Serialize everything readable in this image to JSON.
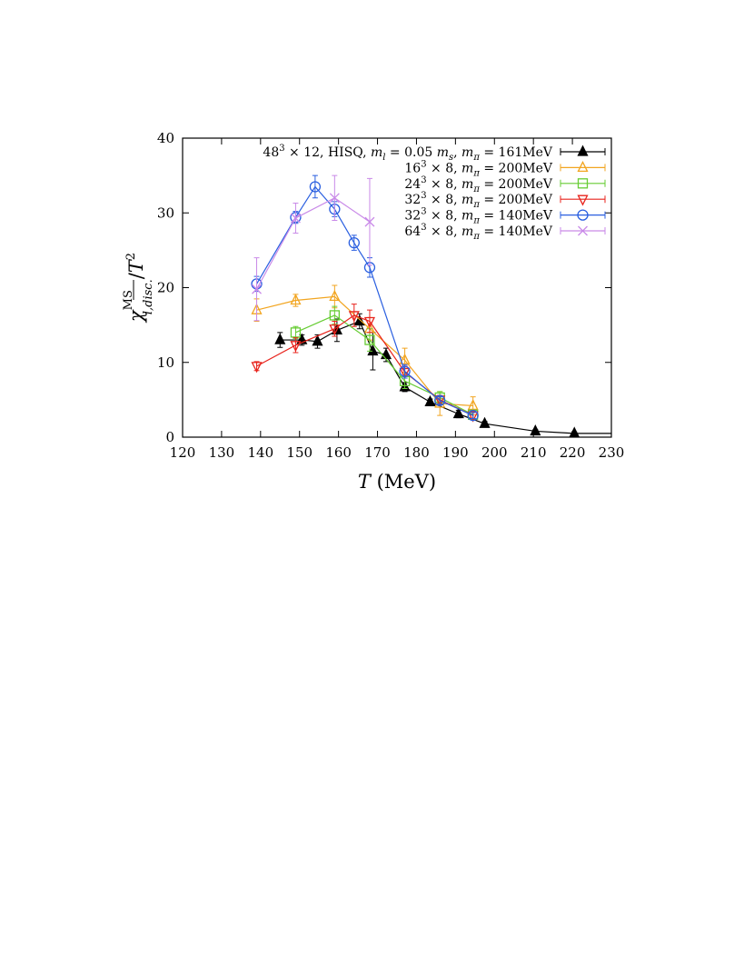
{
  "chart_data": {
    "type": "line",
    "title": "",
    "xlabel": {
      "italic": "T",
      "rest": " (MeV)"
    },
    "ylabel": {
      "chi": "χ",
      "sup": "MS",
      "sub": "l,disc.",
      "over": "/T",
      "pow": "2"
    },
    "xlim": [
      120,
      230
    ],
    "ylim": [
      0,
      40
    ],
    "xticks": [
      120,
      130,
      140,
      150,
      160,
      170,
      180,
      190,
      200,
      210,
      220,
      230
    ],
    "yticks": [
      0,
      10,
      20,
      30,
      40
    ],
    "grid": false,
    "legend_position": "top-right",
    "series": [
      {
        "name": "48³ × 12, HISQ, mₗ = 0.05 mₛ, m_π = 161MeV",
        "legend": [
          {
            "t": "48",
            "b": 1
          },
          {
            "t": "3",
            "sup": 1
          },
          {
            "t": " × 12, HISQ, "
          },
          {
            "t": "m",
            "i": 1
          },
          {
            "t": "l",
            "sub": 1,
            "i": 1
          },
          {
            "t": " = 0.05 "
          },
          {
            "t": "m",
            "i": 1
          },
          {
            "t": "s",
            "sub": 1,
            "i": 1
          },
          {
            "t": ", "
          },
          {
            "t": "m",
            "i": 1
          },
          {
            "t": "π",
            "sub": 1,
            "i": 1
          },
          {
            "t": " = 161MeV"
          }
        ],
        "color": "#000000",
        "marker": "triangle-filled",
        "points": [
          {
            "x": 145.0,
            "y": 13.0,
            "err": 1.0
          },
          {
            "x": 150.6,
            "y": 13.0,
            "err": 0.7
          },
          {
            "x": 154.6,
            "y": 12.8,
            "err": 0.9
          },
          {
            "x": 159.6,
            "y": 14.3,
            "err": 1.5
          },
          {
            "x": 165.4,
            "y": 15.5,
            "err": 1.0
          },
          {
            "x": 168.8,
            "y": 11.5,
            "err": 2.5
          },
          {
            "x": 172.2,
            "y": 11.0,
            "err": 0.9
          },
          {
            "x": 177.0,
            "y": 6.7,
            "err": 0.6
          },
          {
            "x": 183.5,
            "y": 4.7,
            "err": 0.4
          },
          {
            "x": 190.8,
            "y": 3.1,
            "err": 0.5
          },
          {
            "x": 197.5,
            "y": 1.8,
            "err": 0.3
          },
          {
            "x": 210.5,
            "y": 0.8,
            "err": 0.2
          },
          {
            "x": 220.5,
            "y": 0.5,
            "err": 0.2
          },
          {
            "x": 230.0,
            "y": 0.5,
            "err": 0
          }
        ]
      },
      {
        "name": "16³ × 8, m_π = 200MeV",
        "legend": [
          {
            "t": "16"
          },
          {
            "t": "3",
            "sup": 1
          },
          {
            "t": " × 8, "
          },
          {
            "t": "m",
            "i": 1
          },
          {
            "t": "π",
            "sub": 1,
            "i": 1
          },
          {
            "t": " = 200MeV"
          }
        ],
        "color": "#f2a520",
        "marker": "triangle-open",
        "points": [
          {
            "x": 139.0,
            "y": 17.0,
            "err": 1.5
          },
          {
            "x": 149.0,
            "y": 18.3,
            "err": 0.8
          },
          {
            "x": 159.0,
            "y": 18.8,
            "err": 1.5
          },
          {
            "x": 168.0,
            "y": 14.5,
            "err": 1.5
          },
          {
            "x": 177.0,
            "y": 10.3,
            "err": 1.6
          },
          {
            "x": 186.0,
            "y": 4.5,
            "err": 1.6
          },
          {
            "x": 194.5,
            "y": 4.2,
            "err": 1.2
          }
        ]
      },
      {
        "name": "24³ × 8, m_π = 200MeV",
        "legend": [
          {
            "t": "24"
          },
          {
            "t": "3",
            "sup": 1
          },
          {
            "t": " × 8, "
          },
          {
            "t": "m",
            "i": 1
          },
          {
            "t": "π",
            "sub": 1,
            "i": 1
          },
          {
            "t": " = 200MeV"
          }
        ],
        "color": "#66cc33",
        "marker": "square-open",
        "points": [
          {
            "x": 149.0,
            "y": 14.0,
            "err": 0.8
          },
          {
            "x": 159.0,
            "y": 16.3,
            "err": 1.2
          },
          {
            "x": 168.0,
            "y": 13.0,
            "err": 1.5
          },
          {
            "x": 177.0,
            "y": 7.5,
            "err": 1.0
          },
          {
            "x": 186.0,
            "y": 5.3,
            "err": 0.8
          },
          {
            "x": 194.5,
            "y": 3.0,
            "err": 0.5
          }
        ]
      },
      {
        "name": "32³ × 8, m_π = 200MeV",
        "legend": [
          {
            "t": "32"
          },
          {
            "t": "3",
            "sup": 1
          },
          {
            "t": " × 8, "
          },
          {
            "t": "m",
            "i": 1
          },
          {
            "t": "π",
            "sub": 1,
            "i": 1
          },
          {
            "t": " = 200MeV"
          }
        ],
        "color": "#e8231c",
        "marker": "triangle-down-open",
        "points": [
          {
            "x": 139.0,
            "y": 9.5,
            "err": 0.6
          },
          {
            "x": 149.0,
            "y": 12.3,
            "err": 1.0
          },
          {
            "x": 159.0,
            "y": 14.5,
            "err": 1.0
          },
          {
            "x": 164.0,
            "y": 16.3,
            "err": 1.5
          },
          {
            "x": 168.0,
            "y": 15.5,
            "err": 1.5
          },
          {
            "x": 177.0,
            "y": 8.7,
            "err": 0.8
          },
          {
            "x": 186.0,
            "y": 5.0,
            "err": 0.6
          },
          {
            "x": 194.5,
            "y": 2.9,
            "err": 0.4
          }
        ]
      },
      {
        "name": "32³ × 8, m_π = 140MeV",
        "legend": [
          {
            "t": "32"
          },
          {
            "t": "3",
            "sup": 1
          },
          {
            "t": " × 8, "
          },
          {
            "t": "m",
            "i": 1
          },
          {
            "t": "π",
            "sub": 1,
            "i": 1
          },
          {
            "t": " = 140MeV"
          }
        ],
        "color": "#2a5fe0",
        "marker": "circle-open",
        "points": [
          {
            "x": 139.0,
            "y": 20.5,
            "err": 1.0
          },
          {
            "x": 149.0,
            "y": 29.4,
            "err": 0.8
          },
          {
            "x": 154.0,
            "y": 33.5,
            "err": 1.5
          },
          {
            "x": 159.0,
            "y": 30.5,
            "err": 1.0
          },
          {
            "x": 164.0,
            "y": 26.0,
            "err": 1.0
          },
          {
            "x": 168.0,
            "y": 22.7,
            "err": 1.3
          },
          {
            "x": 177.0,
            "y": 8.8,
            "err": 0.9
          },
          {
            "x": 186.0,
            "y": 4.9,
            "err": 0.5
          },
          {
            "x": 194.5,
            "y": 2.9,
            "err": 0.4
          }
        ]
      },
      {
        "name": "64³ × 8, m_π = 140MeV",
        "legend": [
          {
            "t": "64"
          },
          {
            "t": "3",
            "sup": 1
          },
          {
            "t": " × 8, "
          },
          {
            "t": "m",
            "i": 1
          },
          {
            "t": "π",
            "sub": 1,
            "i": 1
          },
          {
            "t": " = 140MeV"
          }
        ],
        "color": "#c98ae8",
        "marker": "x",
        "points": [
          {
            "x": 139.0,
            "y": 19.8,
            "err": 4.2
          },
          {
            "x": 149.0,
            "y": 29.3,
            "err": 2.0
          },
          {
            "x": 159.0,
            "y": 32.0,
            "err": 3.0
          },
          {
            "x": 168.0,
            "y": 28.8,
            "err": 5.8
          }
        ]
      }
    ]
  }
}
